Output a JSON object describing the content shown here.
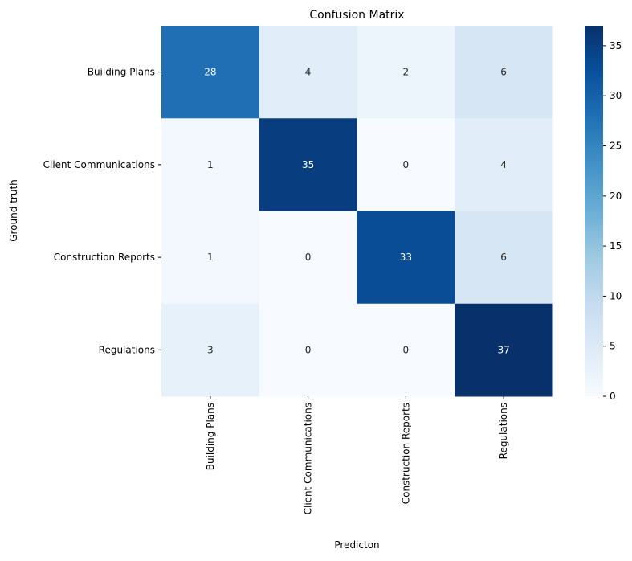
{
  "chart_data": {
    "type": "heatmap",
    "title": "Confusion Matrix",
    "xlabel": "Predicton",
    "ylabel": "Ground truth",
    "x_categories": [
      "Building Plans",
      "Client Communications",
      "Construction Reports",
      "Regulations"
    ],
    "y_categories": [
      "Building Plans",
      "Client Communications",
      "Construction Reports",
      "Regulations"
    ],
    "values": [
      [
        28,
        4,
        2,
        6
      ],
      [
        1,
        35,
        0,
        4
      ],
      [
        1,
        0,
        33,
        6
      ],
      [
        3,
        0,
        0,
        37
      ]
    ],
    "colormap": "Blues",
    "color_range": [
      0,
      37
    ],
    "colorbar": {
      "ticks": [
        0,
        5,
        10,
        15,
        20,
        25,
        30,
        35
      ],
      "tick_labels": [
        "0",
        "5",
        "10",
        "15",
        "20",
        "25",
        "30",
        "35"
      ]
    },
    "annotations": true,
    "grid": false
  }
}
